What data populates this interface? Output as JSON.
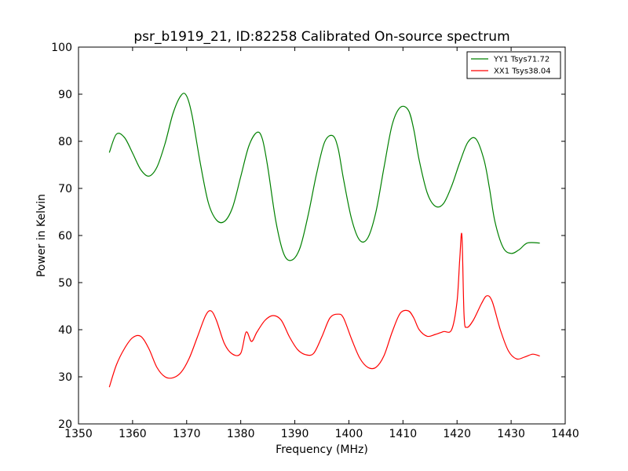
{
  "chart_data": {
    "type": "line",
    "title": "psr_b1919_21, ID:82258 Calibrated On-source spectrum",
    "xlabel": "Frequency (MHz)",
    "ylabel": "Power in Kelvin",
    "xlim": [
      1350,
      1440
    ],
    "ylim": [
      20,
      100
    ],
    "xticks": [
      1350,
      1360,
      1370,
      1380,
      1390,
      1400,
      1410,
      1420,
      1430,
      1440
    ],
    "yticks": [
      20,
      30,
      40,
      50,
      60,
      70,
      80,
      90,
      100
    ],
    "grid": false,
    "legend_position": "top-right",
    "series": [
      {
        "name": "YY1 Tsys71.72",
        "color": "#008000",
        "x": [
          1355.7,
          1357,
          1358.5,
          1360,
          1361.5,
          1363,
          1364.5,
          1366,
          1367.5,
          1369,
          1370,
          1371,
          1372.5,
          1374,
          1375.5,
          1377,
          1378.5,
          1380,
          1381.5,
          1383,
          1384,
          1385,
          1386.5,
          1388,
          1389.5,
          1391,
          1392.5,
          1394,
          1395.5,
          1397,
          1398,
          1399,
          1400.5,
          1402,
          1403.5,
          1405,
          1406.5,
          1408,
          1409.5,
          1411,
          1412,
          1413,
          1414.5,
          1416,
          1417.5,
          1419,
          1420.5,
          1422,
          1423.5,
          1425,
          1426,
          1427,
          1428.5,
          1430,
          1431.5,
          1433,
          1435.3
        ],
        "y": [
          77.6,
          81.5,
          80.8,
          77.5,
          74,
          72.6,
          74.5,
          79.5,
          86,
          89.8,
          89.6,
          85.5,
          75.5,
          67,
          63.3,
          63,
          66,
          72.5,
          79,
          81.9,
          80.5,
          74.5,
          63,
          56,
          54.8,
          57.5,
          64.5,
          73,
          79.8,
          81.2,
          78.5,
          72,
          63.5,
          59,
          59.5,
          65,
          74.5,
          83.5,
          87.2,
          86.6,
          82.5,
          76,
          69,
          66.2,
          66.8,
          70.5,
          75.5,
          79.8,
          80.5,
          76,
          70,
          63,
          57.5,
          56.2,
          57,
          58.4,
          58.4
        ]
      },
      {
        "name": "XX1 Tsys38.04",
        "color": "#ff0000",
        "x": [
          1355.7,
          1357,
          1358.5,
          1360,
          1361.5,
          1363,
          1364.5,
          1366,
          1367.5,
          1369,
          1370.5,
          1372,
          1373.5,
          1374.5,
          1375.5,
          1377,
          1378.5,
          1380,
          1381,
          1382,
          1383,
          1384.5,
          1386,
          1387.5,
          1389,
          1390.5,
          1392,
          1393.5,
          1395,
          1396.5,
          1398,
          1399,
          1400.5,
          1402,
          1403.5,
          1405,
          1406.5,
          1408,
          1409.5,
          1411,
          1412,
          1413,
          1414.5,
          1416,
          1417.5,
          1419,
          1420,
          1420.5,
          1420.9,
          1421.3,
          1421.8,
          1423,
          1424.5,
          1425.5,
          1426.5,
          1428,
          1429.5,
          1431,
          1432.5,
          1434,
          1435.3
        ],
        "y": [
          27.8,
          32.5,
          36,
          38.3,
          38.6,
          36,
          32,
          30,
          29.8,
          31,
          34,
          38.5,
          43,
          44,
          42,
          37,
          34.8,
          35,
          39.5,
          37.5,
          39.5,
          42,
          43,
          42,
          38.5,
          35.8,
          34.7,
          35,
          38.5,
          42.5,
          43.3,
          42.5,
          38,
          34,
          32,
          32,
          34.5,
          39.5,
          43.5,
          44,
          42.5,
          40,
          38.6,
          39,
          39.6,
          40,
          46,
          55,
          60,
          43,
          40.5,
          42,
          45.5,
          47.2,
          46,
          40,
          35.5,
          33.8,
          34.2,
          34.8,
          34.4
        ]
      }
    ]
  }
}
